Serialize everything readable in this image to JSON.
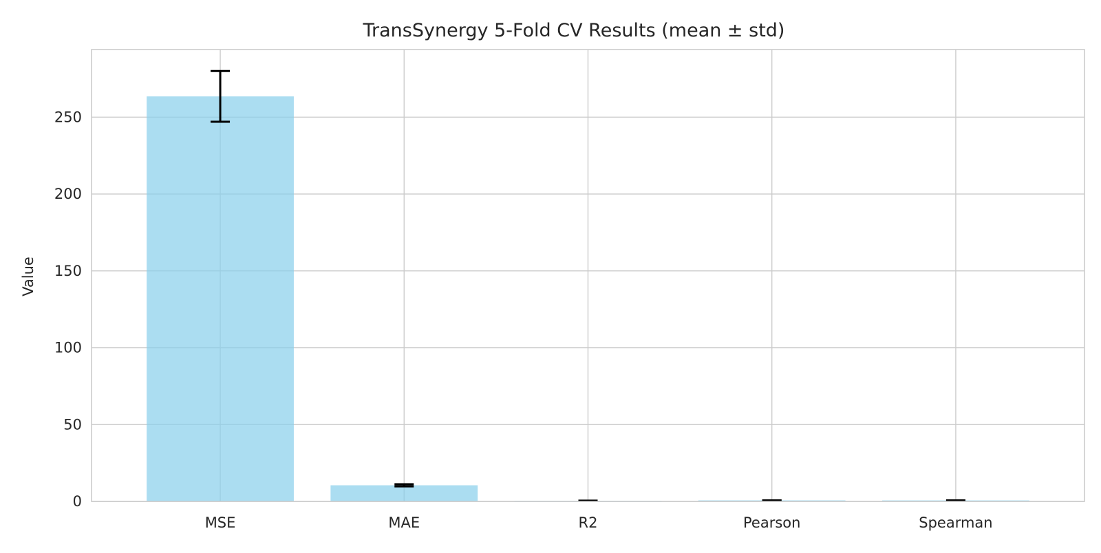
{
  "chart_data": {
    "type": "bar",
    "title": "TransSynergy 5-Fold CV Results (mean ± std)",
    "xlabel": "",
    "ylabel": "Value",
    "categories": [
      "MSE",
      "MAE",
      "R2",
      "Pearson",
      "Spearman"
    ],
    "values": [
      263.5,
      10.5,
      0.45,
      0.67,
      0.65
    ],
    "errors": [
      16.5,
      0.7,
      0.03,
      0.02,
      0.02
    ],
    "ylim": [
      0,
      294
    ],
    "yticks": [
      0,
      50,
      100,
      150,
      200,
      250
    ],
    "grid": true,
    "legend": "none",
    "colors": {
      "bar": "#87CEEB",
      "bar_opacity": 0.7,
      "error_bar": "#000000",
      "grid": "#cccccc",
      "frame": "#cccccc",
      "text": "#262626",
      "background": "#ffffff"
    }
  }
}
